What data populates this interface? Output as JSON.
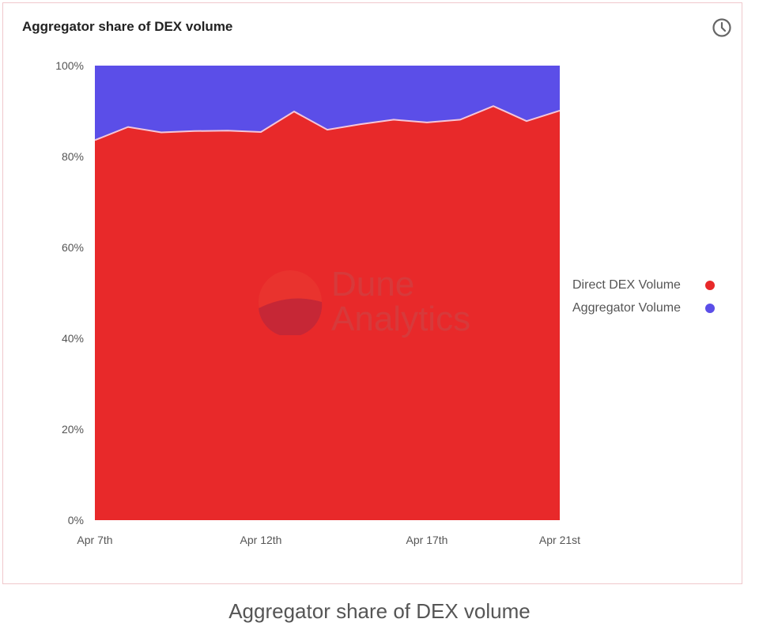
{
  "header": {
    "title": "Aggregator share of DEX volume",
    "icon": "clock-icon"
  },
  "caption": "Aggregator share of DEX volume",
  "watermark": {
    "line1": "Dune",
    "line2": "Analytics"
  },
  "chart_data": {
    "type": "area",
    "stacked": "percent",
    "title": "Aggregator share of DEX volume",
    "x": [
      "Apr 7",
      "Apr 8",
      "Apr 9",
      "Apr 10",
      "Apr 11",
      "Apr 12",
      "Apr 13",
      "Apr 14",
      "Apr 15",
      "Apr 16",
      "Apr 17",
      "Apr 18",
      "Apr 19",
      "Apr 20",
      "Apr 21"
    ],
    "x_tick_labels": [
      "Apr 7th",
      "Apr 12th",
      "Apr 17th",
      "Apr 21st"
    ],
    "x_tick_index": [
      0,
      5,
      10,
      14
    ],
    "y_tick_labels": [
      "0%",
      "20%",
      "40%",
      "60%",
      "80%",
      "100%"
    ],
    "ylim": [
      0,
      100
    ],
    "grid": false,
    "legend_placement": "right",
    "series": [
      {
        "name": "Direct DEX Volume",
        "color": "#e8292a",
        "values": [
          83.6,
          86.5,
          85.3,
          85.6,
          85.7,
          85.4,
          89.9,
          85.9,
          87.1,
          88.1,
          87.5,
          88.1,
          91.1,
          87.8,
          90.1
        ]
      },
      {
        "name": "Aggregator Volume",
        "color": "#5b4ee8",
        "values": [
          16.4,
          13.5,
          14.7,
          14.4,
          14.3,
          14.6,
          10.1,
          14.1,
          12.9,
          11.9,
          12.5,
          11.9,
          8.9,
          12.2,
          9.9
        ]
      }
    ],
    "legend_labels": [
      "Direct DEX Volume",
      "Aggregator Volume"
    ]
  }
}
